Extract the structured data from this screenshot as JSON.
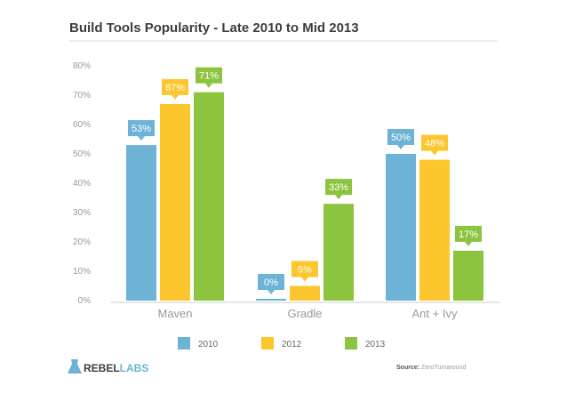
{
  "chart_data": {
    "type": "bar",
    "title": "Build Tools Popularity - Late 2010 to Mid 2013",
    "categories": [
      "Maven",
      "Gradle",
      "Ant + Ivy"
    ],
    "series": [
      {
        "name": "2010",
        "values": [
          53,
          0,
          50
        ],
        "labels": [
          "53%",
          "0%",
          "50%"
        ],
        "color": "#6db3d6"
      },
      {
        "name": "2012",
        "values": [
          67,
          5,
          48
        ],
        "labels": [
          "67%",
          "5%",
          "48%"
        ],
        "color": "#fcc62e"
      },
      {
        "name": "2013",
        "values": [
          71,
          33,
          17
        ],
        "labels": [
          "71%",
          "33%",
          "17%"
        ],
        "color": "#8cc43f"
      }
    ],
    "ylim": [
      0,
      80
    ],
    "yticks": [
      "0%",
      "10%",
      "20%",
      "30%",
      "40%",
      "50%",
      "60%",
      "70%",
      "80%"
    ],
    "grid": false,
    "legend_position": "bottom",
    "source_label": "Source:",
    "source_value": "ZeroTurnaround",
    "brand": {
      "rebel": "REBEL",
      "labs": "LABS"
    }
  }
}
